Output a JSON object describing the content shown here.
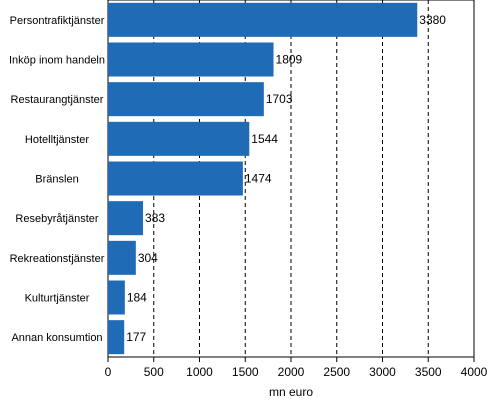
{
  "chart_data": {
    "type": "bar",
    "orientation": "horizontal",
    "categories": [
      "Persontrafiktjänster",
      "Inköp inom handeln",
      "Restaurangtjänster",
      "Hotelltjänster",
      "Bränslen",
      "Resebyråtjänster",
      "Rekreationstjänster",
      "Kulturtjänster",
      "Annan konsumtion"
    ],
    "values": [
      3380,
      1809,
      1703,
      1544,
      1474,
      383,
      304,
      184,
      177
    ],
    "value_labels": [
      "3380",
      "1809",
      "1703",
      "1544",
      "1474",
      "383",
      "304",
      "184",
      "177"
    ],
    "xlabel": "mn euro",
    "xlim": [
      0,
      4000
    ],
    "xticks": [
      0,
      500,
      1000,
      1500,
      2000,
      2500,
      3000,
      3500,
      4000
    ],
    "xtick_labels": [
      "0",
      "500",
      "1000",
      "1500",
      "2000",
      "2500",
      "3000",
      "3500",
      "4000"
    ],
    "grid": "vertical dashed",
    "bar_color": "#1f6bb5"
  }
}
